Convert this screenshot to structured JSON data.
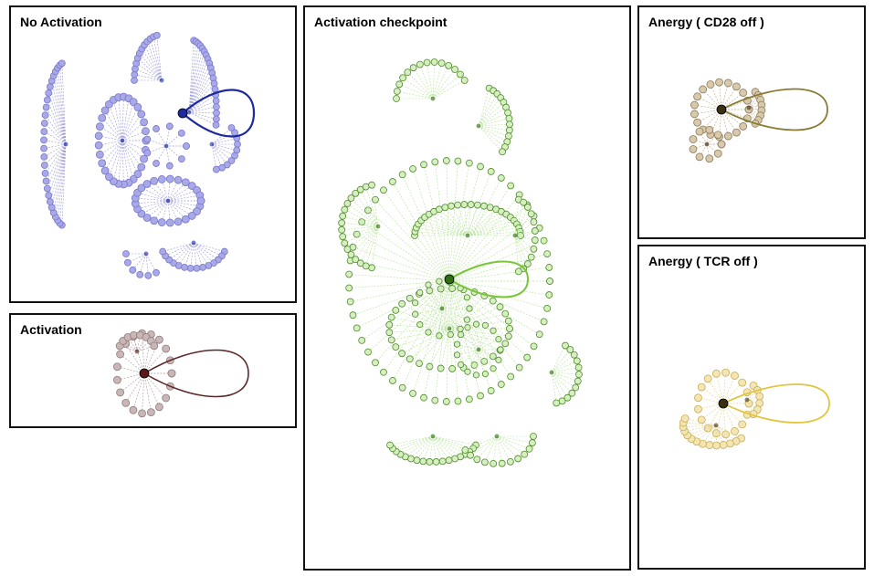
{
  "panels": [
    {
      "id": "no-activation",
      "title": "No Activation",
      "node_fill": "#a9a9e8",
      "node_stroke": "#7777cc",
      "edge": "#9a9ad6",
      "hub": "#1c2a9e",
      "loop": "#1c2a9e"
    },
    {
      "id": "activation",
      "title": "Activation",
      "node_fill": "#c9b6b6",
      "node_stroke": "#8f7a7a",
      "edge": "#a99696",
      "hub": "#5a1818",
      "loop": "#5a2a2a"
    },
    {
      "id": "activation-checkpoint",
      "title": "Activation checkpoint",
      "node_fill": "#d6efc0",
      "node_stroke": "#4f8a2a",
      "edge": "#b7e39a",
      "hub": "#2f6e12",
      "loop": "#79c63a"
    },
    {
      "id": "anergy-cd28",
      "title": "Anergy ( CD28 off )",
      "node_fill": "#d8c9ad",
      "node_stroke": "#8c7a58",
      "edge": "#b8a888",
      "hub": "#3a3014",
      "loop": "#8a7a34"
    },
    {
      "id": "anergy-tcr",
      "title": "Anergy ( TCR off )",
      "node_fill": "#f3e6b4",
      "node_stroke": "#c9ad52",
      "edge": "#e3d18e",
      "hub": "#3a3010",
      "loop": "#e3c43a"
    }
  ]
}
